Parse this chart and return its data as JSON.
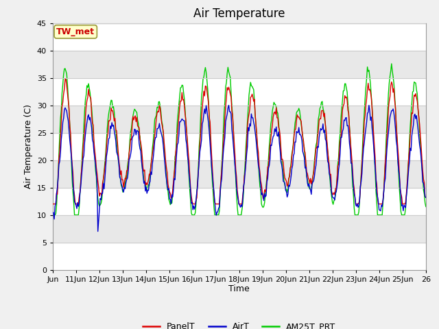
{
  "title": "Air Temperature",
  "xlabel": "Time",
  "ylabel": "Air Temperature (C)",
  "ylim": [
    0,
    45
  ],
  "yticks": [
    0,
    5,
    10,
    15,
    20,
    25,
    30,
    35,
    40,
    45
  ],
  "annotation_text": "TW_met",
  "annotation_color": "#cc0000",
  "annotation_bg": "#ffffcc",
  "annotation_border": "#999933",
  "line_PanelT_color": "#dd0000",
  "line_AirT_color": "#0000cc",
  "line_AM25T_color": "#00cc00",
  "title_fontsize": 12,
  "axis_fontsize": 9,
  "tick_fontsize": 8,
  "legend_fontsize": 9
}
